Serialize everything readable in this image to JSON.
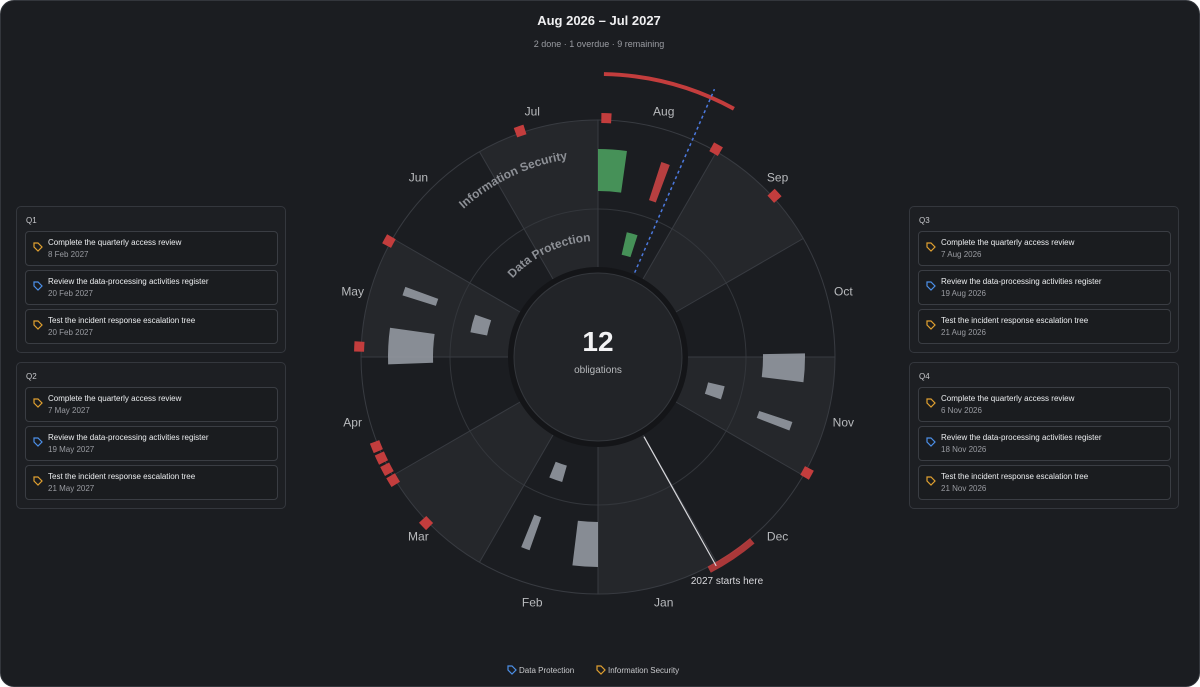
{
  "header": {
    "title": "Aug 2026 – Jul 2027",
    "subtitle": "2 done · 1 overdue · 9 remaining"
  },
  "wheel": {
    "months": [
      "Aug",
      "Sep",
      "Oct",
      "Nov",
      "Dec",
      "Jan",
      "Feb",
      "Mar",
      "Apr",
      "May",
      "Jun",
      "Jul"
    ],
    "rings": [
      "Information Security",
      "Data Protection"
    ],
    "center": {
      "count": 12,
      "label": "obligations"
    },
    "annotation": "2027 starts here"
  },
  "quarters": [
    {
      "title": "Q1",
      "items": [
        {
          "title": "Complete the quarterly access review",
          "date": "8 Feb 2027"
        },
        {
          "title": "Review the data-processing activities register",
          "date": "20 Feb 2027"
        },
        {
          "title": "Test the incident response escalation tree",
          "date": "20 Feb 2027"
        }
      ]
    },
    {
      "title": "Q2",
      "items": [
        {
          "title": "Complete the quarterly access review",
          "date": "7 May 2027"
        },
        {
          "title": "Review the data-processing activities register",
          "date": "19 May 2027"
        },
        {
          "title": "Test the incident response escalation tree",
          "date": "21 May 2027"
        }
      ]
    },
    {
      "title": "Q3",
      "items": [
        {
          "title": "Complete the quarterly access review",
          "date": "7 Aug 2026"
        },
        {
          "title": "Review the data-processing activities register",
          "date": "19 Aug 2026"
        },
        {
          "title": "Test the incident response escalation tree",
          "date": "21 Aug 2026"
        }
      ]
    },
    {
      "title": "Q4",
      "items": [
        {
          "title": "Complete the quarterly access review",
          "date": "6 Nov 2026"
        },
        {
          "title": "Review the data-processing activities register",
          "date": "18 Nov 2026"
        },
        {
          "title": "Test the incident response escalation tree",
          "date": "21 Nov 2026"
        }
      ]
    }
  ],
  "legend": [
    "Data Protection",
    "Information Security"
  ]
}
